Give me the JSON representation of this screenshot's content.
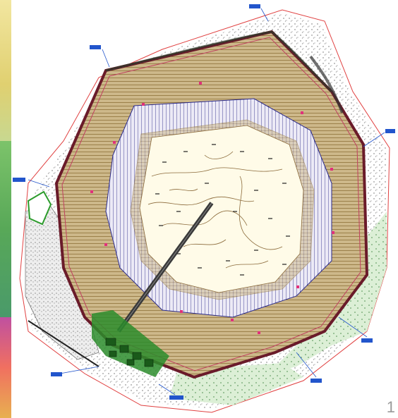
{
  "page": {
    "number": "1"
  },
  "colors": {
    "benchFill": "#cdb88a",
    "benchLine": "#8a6a2a",
    "rampLine": "#2b2b8c",
    "perimeter": "#6a1b2a",
    "pitFloor": "#fffbe8",
    "contour": "#8b6a3a",
    "property": "#e04040",
    "calloutLine": "#2255cc",
    "wasteDump": "#f0f0f0",
    "vegetation": "#d8ecd4",
    "facility": "#2c8c2c"
  },
  "icons": [
    "callout-label-icon",
    "survey-marker-icon",
    "pond-icon"
  ]
}
